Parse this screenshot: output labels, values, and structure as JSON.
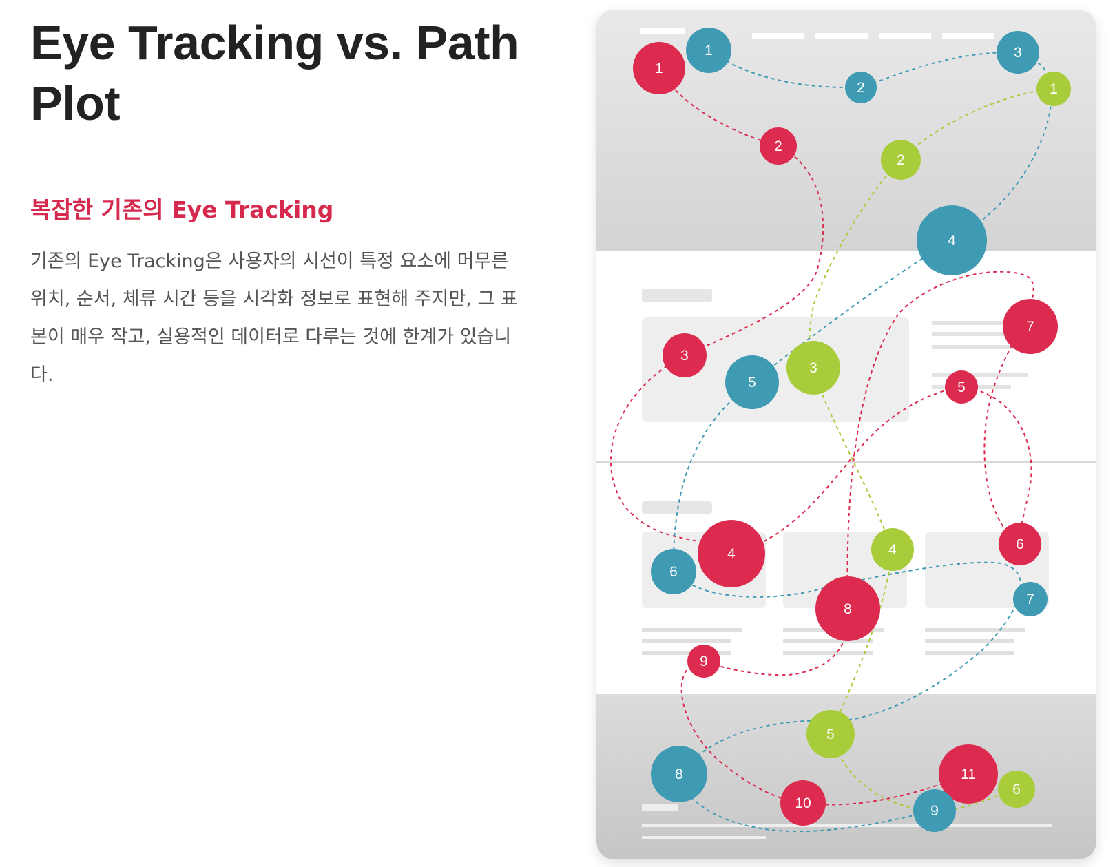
{
  "heading": {
    "title": "Eye Tracking vs. Path Plot",
    "subtitle": "복잡한 기존의 Eye Tracking",
    "description": "기존의 Eye Tracking은 사용자의 시선이 특정 요소에 머무른 위치, 순서, 체류 시간 등을 시각화 정보로 표현해 주지만, 그 표본이 매우 작고, 실용적인 데이터로 다루는 것에 한계가 있습니다."
  },
  "colors": {
    "red": "#dc2b4f",
    "blue": "#3f9ab3",
    "green": "#a9cc3a",
    "title": "#222222",
    "subtitle": "#d6294e",
    "body_text": "#555555"
  },
  "diagram": {
    "series": [
      {
        "color": "red",
        "fixations": [
          {
            "label": "1"
          },
          {
            "label": "2"
          },
          {
            "label": "3"
          },
          {
            "label": "4"
          },
          {
            "label": "5"
          },
          {
            "label": "7"
          },
          {
            "label": "6"
          },
          {
            "label": "8"
          },
          {
            "label": "9"
          },
          {
            "label": "10"
          },
          {
            "label": "11"
          }
        ]
      },
      {
        "color": "blue",
        "fixations": [
          {
            "label": "1"
          },
          {
            "label": "2"
          },
          {
            "label": "3"
          },
          {
            "label": "4"
          },
          {
            "label": "5"
          },
          {
            "label": "6"
          },
          {
            "label": "7"
          },
          {
            "label": "8"
          },
          {
            "label": "9"
          }
        ]
      },
      {
        "color": "green",
        "fixations": [
          {
            "label": "1"
          },
          {
            "label": "2"
          },
          {
            "label": "3"
          },
          {
            "label": "4"
          },
          {
            "label": "5"
          },
          {
            "label": "6"
          }
        ]
      }
    ]
  }
}
